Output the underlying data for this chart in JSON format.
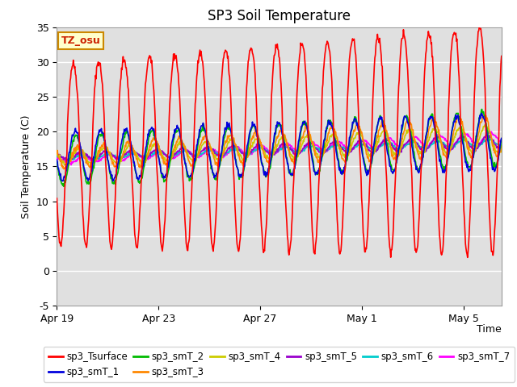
{
  "title": "SP3 Soil Temperature",
  "ylabel": "Soil Temperature (C)",
  "xlabel": "Time",
  "ylim": [
    -5,
    35
  ],
  "xlim_days": [
    0,
    17.5
  ],
  "background_color": "#e0e0e0",
  "annotation_text": "TZ_osu",
  "annotation_bg": "#ffffcc",
  "annotation_border": "#cc8800",
  "series": {
    "sp3_Tsurface": {
      "color": "#ff0000",
      "lw": 1.2
    },
    "sp3_smT_1": {
      "color": "#0000dd",
      "lw": 1.2
    },
    "sp3_smT_2": {
      "color": "#00bb00",
      "lw": 1.2
    },
    "sp3_smT_3": {
      "color": "#ff8800",
      "lw": 1.2
    },
    "sp3_smT_4": {
      "color": "#cccc00",
      "lw": 1.2
    },
    "sp3_smT_5": {
      "color": "#9900cc",
      "lw": 1.2
    },
    "sp3_smT_6": {
      "color": "#00cccc",
      "lw": 1.2
    },
    "sp3_smT_7": {
      "color": "#ff00ff",
      "lw": 1.2
    }
  },
  "xtick_positions": [
    0,
    4,
    8,
    12,
    16
  ],
  "xtick_labels": [
    "Apr 19",
    "Apr 23",
    "Apr 27",
    "May 1",
    "May 5"
  ],
  "ytick_positions": [
    -5,
    0,
    5,
    10,
    15,
    20,
    25,
    30,
    35
  ],
  "grid_color": "#ffffff",
  "grid_lw": 1.0
}
